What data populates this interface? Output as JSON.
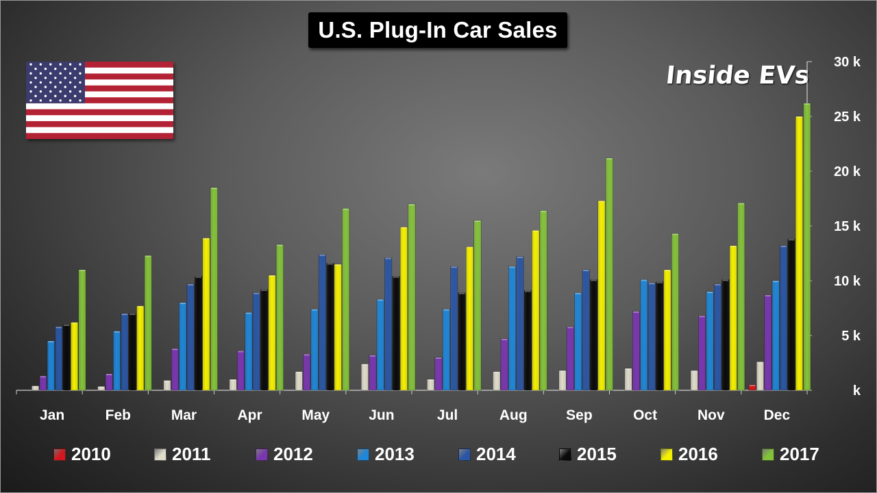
{
  "title": "U.S. Plug-In Car Sales",
  "brand": "Inside EVs",
  "flag_icon": "us-flag-icon",
  "colors": {
    "2010": "#d4171e",
    "2011": "#e0dccc",
    "2012": "#7a36b0",
    "2013": "#1f86d8",
    "2014": "#2a56a4",
    "2015": "#0a0a0a",
    "2016": "#f4f000",
    "2017": "#84c23a"
  },
  "chart_data": {
    "type": "bar",
    "title": "U.S. Plug-In Car Sales",
    "xlabel": "",
    "ylabel": "",
    "ylim": [
      0,
      30000
    ],
    "yticks": [
      "k",
      "5 k",
      "10 k",
      "15 k",
      "20 k",
      "25 k",
      "30 k"
    ],
    "y_axis_position": "right",
    "grid": false,
    "legend_position": "bottom",
    "categories": [
      "Jan",
      "Feb",
      "Mar",
      "Apr",
      "May",
      "Jun",
      "Jul",
      "Aug",
      "Sep",
      "Oct",
      "Nov",
      "Dec"
    ],
    "series": [
      {
        "name": "2010",
        "values": [
          0,
          0,
          0,
          0,
          0,
          0,
          0,
          0,
          0,
          0,
          0,
          500
        ]
      },
      {
        "name": "2011",
        "values": [
          400,
          350,
          900,
          1000,
          1700,
          2400,
          1000,
          1700,
          1800,
          2000,
          1800,
          2600
        ]
      },
      {
        "name": "2012",
        "values": [
          1300,
          1500,
          3800,
          3600,
          3300,
          3200,
          3000,
          4700,
          5800,
          7200,
          6800,
          8700
        ]
      },
      {
        "name": "2013",
        "values": [
          4500,
          5400,
          8000,
          7100,
          7400,
          8300,
          7400,
          11300,
          8900,
          10100,
          9000,
          10000
        ]
      },
      {
        "name": "2014",
        "values": [
          5800,
          7000,
          9700,
          8900,
          12400,
          12100,
          11300,
          12200,
          11000,
          9800,
          9700,
          13200
        ]
      },
      {
        "name": "2015",
        "values": [
          6000,
          7000,
          10400,
          9200,
          11600,
          10400,
          8900,
          9100,
          10100,
          9900,
          10100,
          13800
        ]
      },
      {
        "name": "2016",
        "values": [
          6200,
          7700,
          13900,
          10500,
          11500,
          14900,
          13100,
          14600,
          17300,
          11000,
          13200,
          25000
        ]
      },
      {
        "name": "2017",
        "values": [
          11000,
          12300,
          18500,
          13300,
          16600,
          17000,
          15500,
          16400,
          21200,
          14300,
          17100,
          26200
        ]
      }
    ]
  }
}
